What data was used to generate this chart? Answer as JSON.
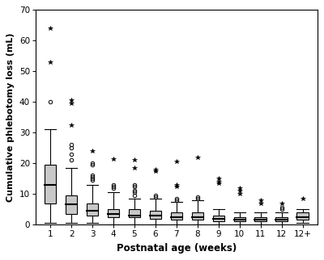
{
  "categories": [
    "1",
    "2",
    "3",
    "4",
    "5",
    "6",
    "7",
    "8",
    "9",
    "10",
    "11",
    "12",
    "12+"
  ],
  "box_data": [
    {
      "whislo": 0.5,
      "q1": 7.0,
      "med": 13.0,
      "q3": 19.5,
      "whishi": 31.0,
      "fliers_circle": [
        40.0
      ],
      "fliers_star": [
        53.0,
        64.0
      ]
    },
    {
      "whislo": 0.5,
      "q1": 3.5,
      "med": 6.5,
      "q3": 9.5,
      "whishi": 18.5,
      "fliers_circle": [
        21.0,
        23.0,
        25.0,
        26.0
      ],
      "fliers_star": [
        32.5,
        39.5,
        40.5
      ]
    },
    {
      "whislo": 0.5,
      "q1": 3.0,
      "med": 4.5,
      "q3": 7.0,
      "whishi": 13.0,
      "fliers_circle": [
        14.5,
        15.0,
        15.5,
        16.0,
        19.5,
        20.0
      ],
      "fliers_star": [
        24.0
      ]
    },
    {
      "whislo": 0.0,
      "q1": 2.5,
      "med": 3.5,
      "q3": 5.0,
      "whishi": 10.5,
      "fliers_circle": [
        12.0,
        12.5,
        13.0
      ],
      "fliers_star": [
        21.5
      ]
    },
    {
      "whislo": 0.0,
      "q1": 2.5,
      "med": 3.0,
      "q3": 5.0,
      "whishi": 8.5,
      "fliers_circle": [
        9.5,
        10.5,
        11.0,
        12.5,
        13.0
      ],
      "fliers_star": [
        18.5,
        21.0
      ]
    },
    {
      "whislo": 0.0,
      "q1": 2.0,
      "med": 3.0,
      "q3": 4.5,
      "whishi": 8.5,
      "fliers_circle": [
        9.0,
        9.5
      ],
      "fliers_star": [
        17.5,
        18.0
      ]
    },
    {
      "whislo": 0.0,
      "q1": 1.5,
      "med": 2.5,
      "q3": 4.0,
      "whishi": 7.5,
      "fliers_circle": [
        8.0,
        8.5
      ],
      "fliers_star": [
        12.5,
        13.0,
        20.5
      ]
    },
    {
      "whislo": 0.0,
      "q1": 1.5,
      "med": 2.5,
      "q3": 4.0,
      "whishi": 8.0,
      "fliers_circle": [
        8.5,
        9.0
      ],
      "fliers_star": [
        22.0
      ]
    },
    {
      "whislo": 0.0,
      "q1": 1.0,
      "med": 2.0,
      "q3": 3.0,
      "whishi": 5.0,
      "fliers_circle": [],
      "fliers_star": [
        13.5,
        14.0,
        15.0
      ]
    },
    {
      "whislo": 0.0,
      "q1": 1.0,
      "med": 1.5,
      "q3": 2.5,
      "whishi": 4.0,
      "fliers_circle": [],
      "fliers_star": [
        10.0,
        11.0,
        12.0
      ]
    },
    {
      "whislo": 0.0,
      "q1": 1.0,
      "med": 1.5,
      "q3": 2.5,
      "whishi": 4.0,
      "fliers_circle": [],
      "fliers_star": [
        7.0,
        8.0
      ]
    },
    {
      "whislo": 0.0,
      "q1": 1.0,
      "med": 1.5,
      "q3": 2.5,
      "whishi": 4.0,
      "fliers_circle": [
        5.0,
        5.5
      ],
      "fliers_star": [
        7.0
      ]
    },
    {
      "whislo": 0.5,
      "q1": 1.5,
      "med": 2.5,
      "q3": 4.0,
      "whishi": 5.0,
      "fliers_circle": [],
      "fliers_star": [
        8.5
      ]
    }
  ],
  "ylim": [
    0,
    70
  ],
  "yticks": [
    0,
    10,
    20,
    30,
    40,
    50,
    60,
    70
  ],
  "ylabel": "Cumulative phlebotomy loss (mL)",
  "xlabel": "Postnatal age (weeks)",
  "box_facecolor": "#c8c8c8",
  "box_edgecolor": "#000000",
  "median_color": "#000000",
  "whisker_color": "#000000",
  "cap_color": "#000000",
  "flier_color": "#000000",
  "background_color": "#ffffff",
  "figsize": [
    4.0,
    3.22
  ],
  "dpi": 100
}
